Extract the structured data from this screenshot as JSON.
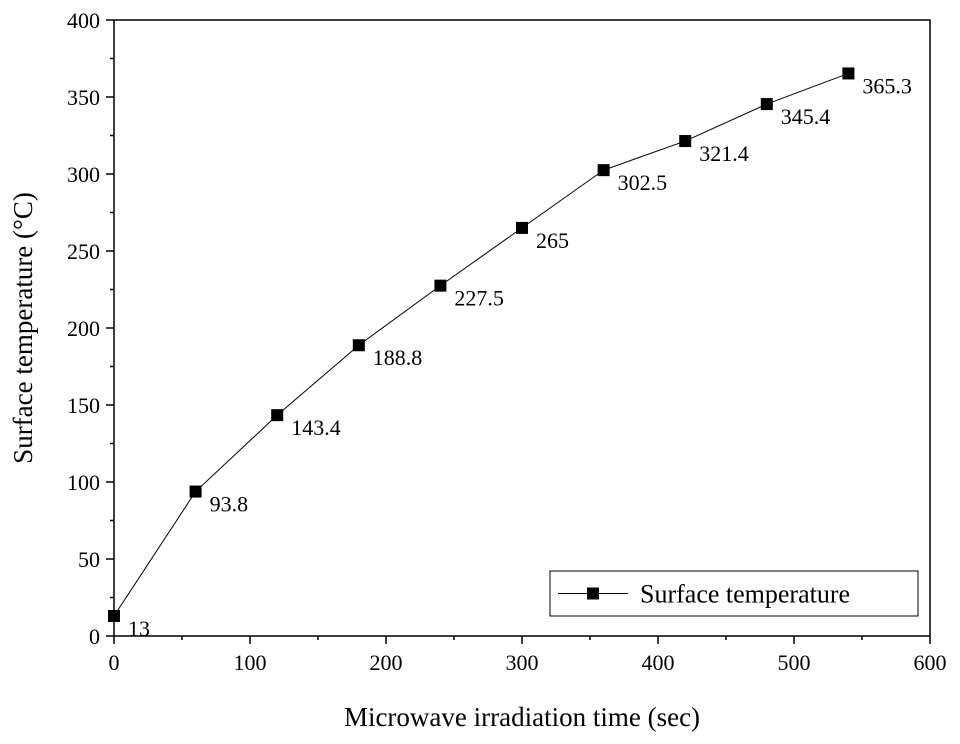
{
  "chart_data": {
    "type": "line",
    "xlabel": "Microwave irradiation time (sec)",
    "ylabel": "Surface temperature (°C)",
    "xlim": [
      0,
      600
    ],
    "ylim": [
      0,
      400
    ],
    "xticks": [
      0,
      100,
      200,
      300,
      400,
      500,
      600
    ],
    "yticks": [
      0,
      50,
      100,
      150,
      200,
      250,
      300,
      350,
      400
    ],
    "grid": false,
    "legend_position": "bottom-right",
    "series": [
      {
        "name": "Surface temperature",
        "marker": "square",
        "color": "#000000",
        "x": [
          0,
          60,
          120,
          180,
          240,
          300,
          360,
          420,
          480,
          540
        ],
        "y": [
          13,
          93.8,
          143.4,
          188.8,
          227.5,
          265,
          302.5,
          321.4,
          345.4,
          365.3
        ],
        "labels": [
          "13",
          "93.8",
          "143.4",
          "188.8",
          "227.5",
          "265",
          "302.5",
          "321.4",
          "345.4",
          "365.3"
        ]
      }
    ]
  }
}
